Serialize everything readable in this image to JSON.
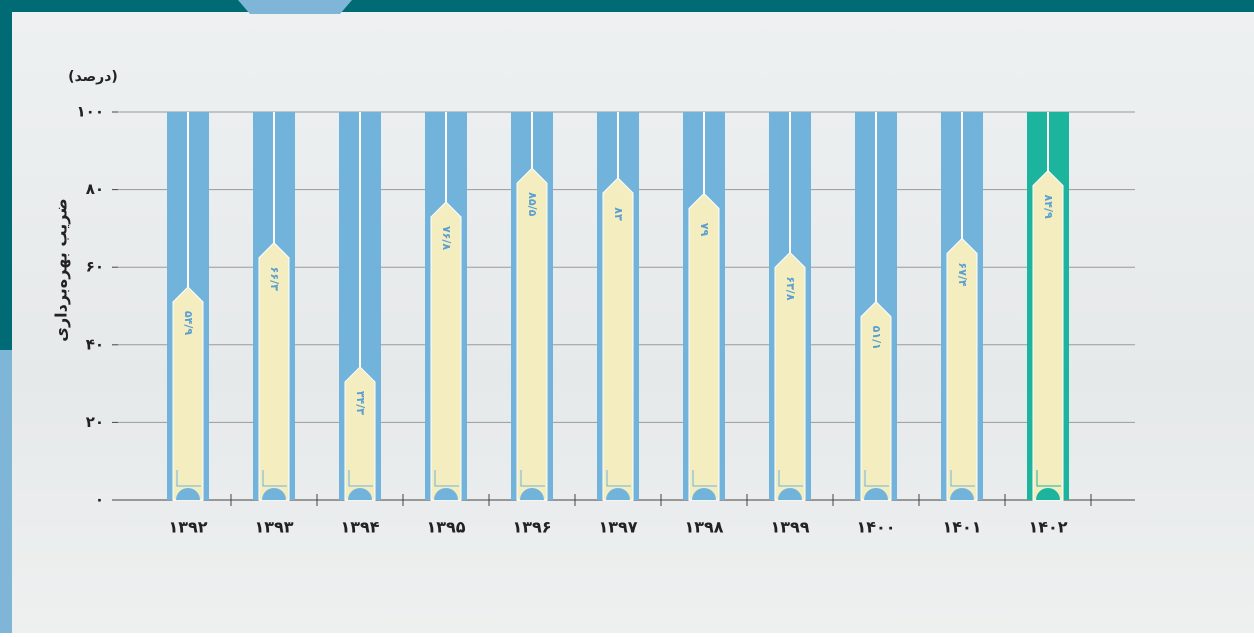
{
  "chart_data": {
    "type": "bar",
    "y_label": "ضریب بهره‌برداری",
    "unit": "(درصد)",
    "categories": [
      "۱۳۹۲",
      "۱۳۹۳",
      "۱۳۹۴",
      "۱۳۹۵",
      "۱۳۹۶",
      "۱۳۹۷",
      "۱۳۹۸",
      "۱۳۹۹",
      "۱۴۰۰",
      "۱۴۰۱",
      "۱۴۰۲"
    ],
    "values": [
      54.9,
      66.3,
      34.3,
      76.8,
      85.5,
      83,
      79,
      63.8,
      51.1,
      67.4,
      84.9
    ],
    "value_labels": [
      "۵۴/۹",
      "۶۶/۳",
      "۳۴/۳",
      "۷۶/۸",
      "۸۵/۵",
      "۸۳",
      "۷۹",
      "۶۳/۸",
      "۵۱/۱",
      "۶۷/۴",
      "۸۴/۹"
    ],
    "colors": [
      "#72b3dc",
      "#72b3dc",
      "#72b3dc",
      "#72b3dc",
      "#72b3dc",
      "#72b3dc",
      "#72b3dc",
      "#72b3dc",
      "#72b3dc",
      "#72b3dc",
      "#1db49e"
    ],
    "fill_color": "#f3edc0",
    "ylim": [
      0,
      100
    ],
    "yticks": [
      {
        "value": 0,
        "label": "۰"
      },
      {
        "value": 20,
        "label": "۲۰"
      },
      {
        "value": 40,
        "label": "۴۰"
      },
      {
        "value": 60,
        "label": "۶۰"
      },
      {
        "value": 80,
        "label": "۸۰"
      },
      {
        "value": 100,
        "label": "۱۰۰"
      }
    ],
    "grid": true
  }
}
